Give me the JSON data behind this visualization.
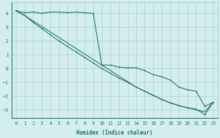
{
  "xlabel": "Humidex (Indice chaleur)",
  "xlim": [
    -0.5,
    23.5
  ],
  "ylim": [
    -3.6,
    4.8
  ],
  "yticks": [
    -3,
    -2,
    -1,
    0,
    1,
    2,
    3,
    4
  ],
  "xticks": [
    0,
    1,
    2,
    3,
    4,
    5,
    6,
    7,
    8,
    9,
    10,
    11,
    12,
    13,
    14,
    15,
    16,
    17,
    18,
    19,
    20,
    21,
    22,
    23
  ],
  "bg_color": "#d4eeee",
  "grid_color": "#aed4d4",
  "line_color": "#1a7070",
  "line1_x": [
    0,
    1,
    2,
    3,
    4,
    5,
    6,
    7,
    8,
    9,
    10,
    11,
    12,
    13,
    14,
    15,
    16,
    17,
    18,
    19,
    20,
    21,
    22,
    23
  ],
  "line1_y": [
    4.2,
    4.05,
    4.1,
    4.0,
    4.1,
    4.1,
    4.05,
    4.1,
    4.05,
    4.0,
    0.25,
    0.25,
    0.1,
    0.05,
    0.05,
    -0.15,
    -0.45,
    -0.6,
    -0.85,
    -1.35,
    -1.55,
    -1.65,
    -2.75,
    -2.45
  ],
  "line2_x": [
    0,
    1,
    2,
    3,
    4,
    5,
    6,
    7,
    8,
    9,
    10,
    11,
    12,
    13,
    14,
    15,
    16,
    17,
    18,
    19,
    20,
    21,
    22,
    23
  ],
  "line2_y": [
    4.2,
    3.85,
    3.45,
    3.05,
    2.65,
    2.25,
    1.85,
    1.45,
    1.05,
    0.65,
    0.25,
    -0.15,
    -0.55,
    -0.95,
    -1.35,
    -1.65,
    -1.95,
    -2.25,
    -2.5,
    -2.7,
    -2.85,
    -3.0,
    -3.15,
    -2.45
  ],
  "line3_x": [
    0,
    1,
    2,
    3,
    4,
    5,
    6,
    7,
    8,
    9,
    10,
    11,
    12,
    13,
    14,
    15,
    16,
    17,
    18,
    19,
    20,
    21,
    22,
    23
  ],
  "line3_y": [
    4.2,
    3.85,
    3.35,
    2.9,
    2.45,
    2.0,
    1.6,
    1.2,
    0.8,
    0.4,
    0.0,
    -0.35,
    -0.7,
    -1.0,
    -1.35,
    -1.65,
    -1.95,
    -2.25,
    -2.5,
    -2.7,
    -2.85,
    -2.95,
    -3.35,
    -2.45
  ]
}
